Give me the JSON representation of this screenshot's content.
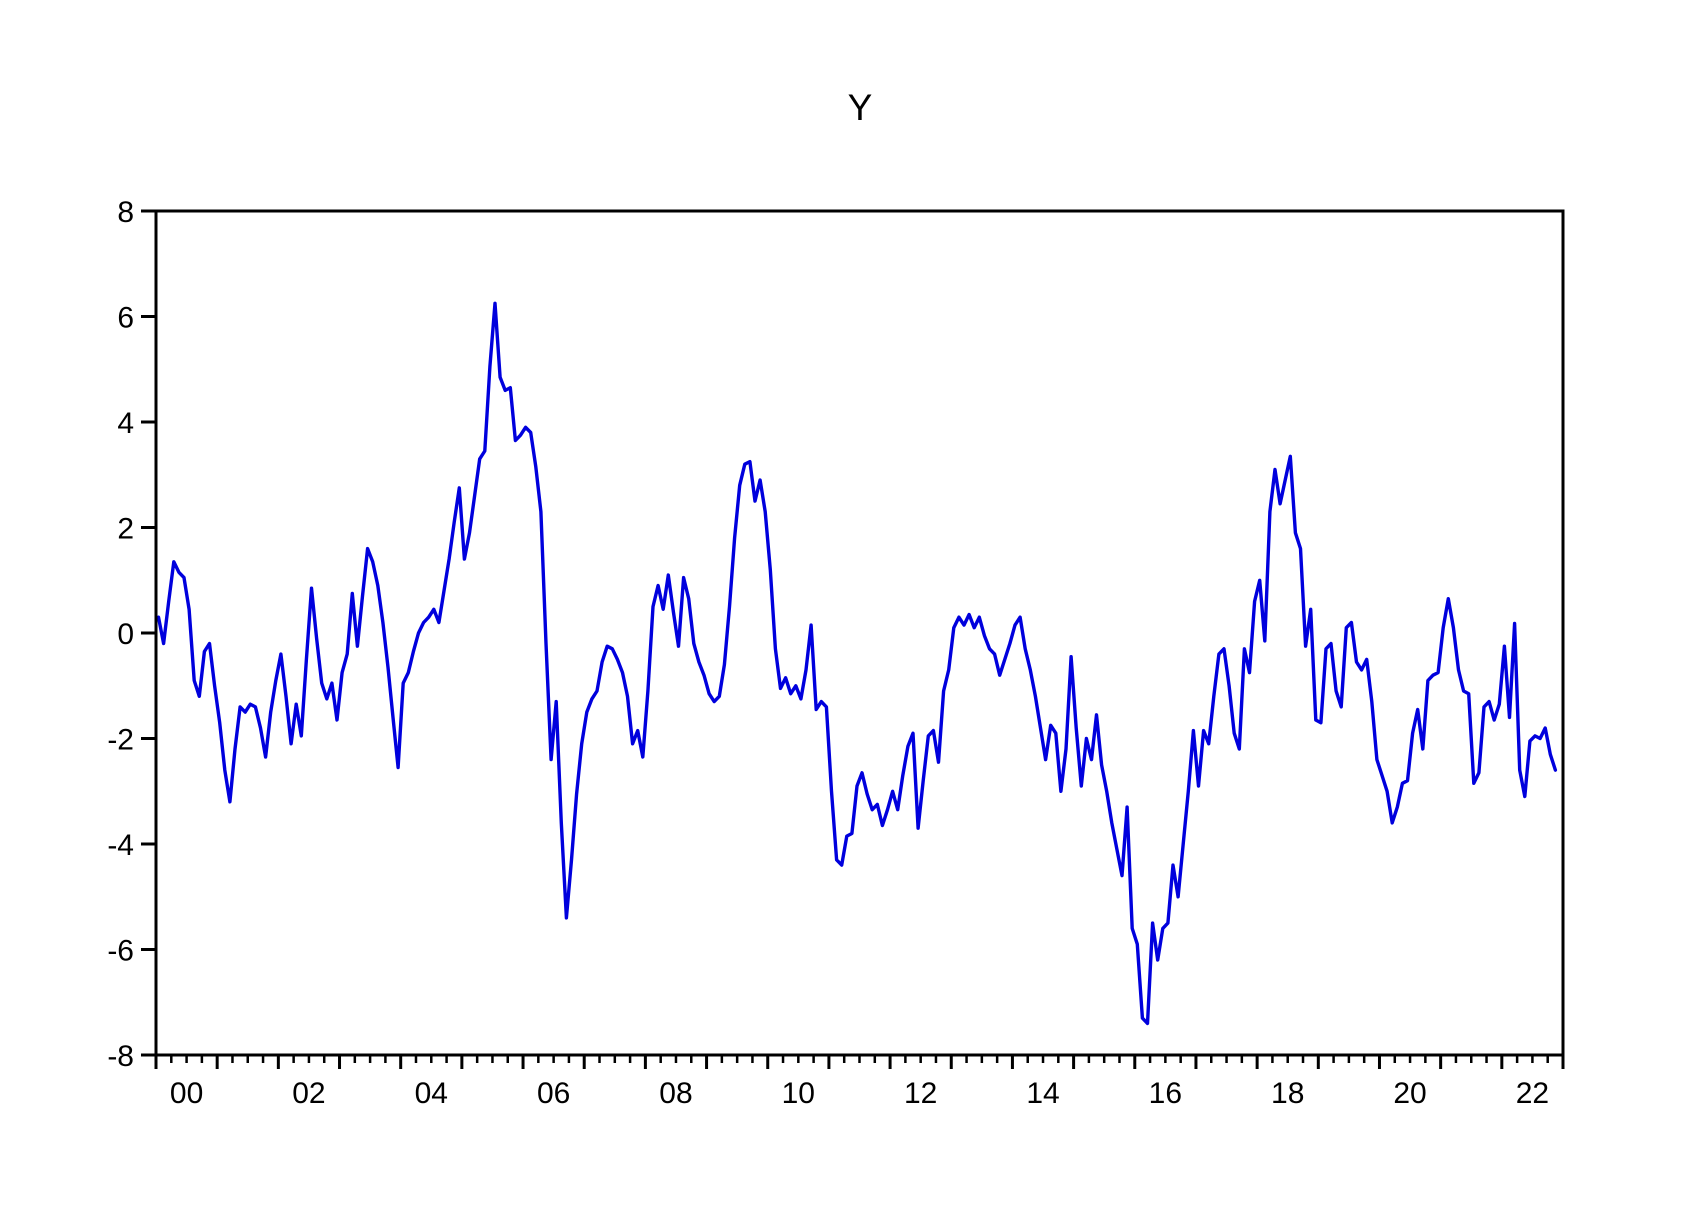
{
  "window": {
    "background": "#ffffff"
  },
  "chart_data": {
    "type": "line",
    "title": "Y",
    "xlabel": "",
    "ylabel": "",
    "xlim": [
      2000,
      2023
    ],
    "ylim": [
      -8,
      8
    ],
    "grid": false,
    "legend": false,
    "frequency": "monthly",
    "x_note": "x of point i = 2000 + (i+0.5)/12, monthly from 2000M01 to 2022M11",
    "ytick_values": [
      8,
      6,
      4,
      2,
      0,
      -2,
      -4,
      -6,
      -8
    ],
    "ytick_labels": [
      "8",
      "6",
      "4",
      "2",
      "0",
      "-2",
      "-4",
      "-6",
      "-8"
    ],
    "xtick_major_years_start": 2000,
    "xtick_major_years_end": 2023,
    "minor_ticks_per_year": 4,
    "xlabel_years": [
      2000,
      2002,
      2004,
      2006,
      2008,
      2010,
      2012,
      2014,
      2016,
      2018,
      2020,
      2022
    ],
    "xlabel_texts": [
      "00",
      "02",
      "04",
      "06",
      "08",
      "10",
      "12",
      "14",
      "16",
      "18",
      "20",
      "22"
    ],
    "axis_color": "#000000",
    "series": [
      {
        "name": "Y",
        "color": "#0000dd",
        "values": [
          0.3,
          -0.2,
          0.6,
          1.35,
          1.15,
          1.05,
          0.45,
          -0.9,
          -1.2,
          -0.35,
          -0.2,
          -1.0,
          -1.7,
          -2.6,
          -3.2,
          -2.2,
          -1.4,
          -1.5,
          -1.35,
          -1.4,
          -1.8,
          -2.35,
          -1.5,
          -0.9,
          -0.4,
          -1.2,
          -2.1,
          -1.35,
          -1.95,
          -0.5,
          0.85,
          -0.1,
          -0.95,
          -1.25,
          -0.95,
          -1.65,
          -0.75,
          -0.4,
          0.75,
          -0.25,
          0.7,
          1.6,
          1.35,
          0.9,
          0.2,
          -0.65,
          -1.6,
          -2.55,
          -0.95,
          -0.75,
          -0.35,
          0.0,
          0.2,
          0.3,
          0.45,
          0.2,
          0.8,
          1.4,
          2.1,
          2.75,
          1.4,
          1.9,
          2.6,
          3.3,
          3.45,
          5.05,
          6.25,
          4.85,
          4.6,
          4.65,
          3.65,
          3.75,
          3.9,
          3.8,
          3.15,
          2.3,
          -0.2,
          -2.4,
          -1.3,
          -3.6,
          -5.4,
          -4.3,
          -3.05,
          -2.1,
          -1.5,
          -1.25,
          -1.1,
          -0.55,
          -0.25,
          -0.3,
          -0.5,
          -0.75,
          -1.2,
          -2.1,
          -1.85,
          -2.35,
          -1.1,
          0.5,
          0.9,
          0.45,
          1.1,
          0.4,
          -0.25,
          1.05,
          0.65,
          -0.2,
          -0.55,
          -0.8,
          -1.15,
          -1.3,
          -1.2,
          -0.6,
          0.5,
          1.8,
          2.8,
          3.2,
          3.25,
          2.5,
          2.9,
          2.3,
          1.2,
          -0.3,
          -1.05,
          -0.85,
          -1.15,
          -1.0,
          -1.25,
          -0.7,
          0.15,
          -1.45,
          -1.3,
          -1.4,
          -3.0,
          -4.3,
          -4.4,
          -3.85,
          -3.8,
          -2.9,
          -2.65,
          -3.05,
          -3.35,
          -3.25,
          -3.65,
          -3.35,
          -3.0,
          -3.35,
          -2.7,
          -2.15,
          -1.9,
          -3.7,
          -2.8,
          -1.95,
          -1.85,
          -2.45,
          -1.1,
          -0.7,
          0.1,
          0.3,
          0.15,
          0.35,
          0.1,
          0.3,
          -0.05,
          -0.3,
          -0.4,
          -0.8,
          -0.5,
          -0.2,
          0.15,
          0.3,
          -0.3,
          -0.7,
          -1.2,
          -1.8,
          -2.4,
          -1.75,
          -1.9,
          -3.0,
          -2.2,
          -0.45,
          -1.8,
          -2.9,
          -2.0,
          -2.4,
          -1.55,
          -2.5,
          -3.0,
          -3.6,
          -4.1,
          -4.6,
          -3.3,
          -5.6,
          -5.9,
          -7.3,
          -7.4,
          -5.5,
          -6.2,
          -5.6,
          -5.5,
          -4.4,
          -5.0,
          -4.0,
          -3.0,
          -1.85,
          -2.9,
          -1.85,
          -2.1,
          -1.2,
          -0.4,
          -0.3,
          -1.0,
          -1.9,
          -2.2,
          -0.3,
          -0.75,
          0.6,
          1.0,
          -0.15,
          2.3,
          3.1,
          2.45,
          2.9,
          3.35,
          1.9,
          1.6,
          -0.25,
          0.45,
          -1.65,
          -1.7,
          -0.3,
          -0.2,
          -1.1,
          -1.4,
          0.1,
          0.2,
          -0.55,
          -0.7,
          -0.5,
          -1.3,
          -2.4,
          -2.7,
          -3.0,
          -3.6,
          -3.3,
          -2.85,
          -2.8,
          -1.9,
          -1.45,
          -2.2,
          -0.9,
          -0.8,
          -0.75,
          0.1,
          0.65,
          0.1,
          -0.7,
          -1.1,
          -1.15,
          -2.85,
          -2.65,
          -1.4,
          -1.3,
          -1.65,
          -1.35,
          -0.25,
          -1.6,
          0.18,
          -2.6,
          -3.1,
          -2.05,
          -1.95,
          -2.0,
          -1.8,
          -2.3,
          -2.6
        ]
      }
    ]
  }
}
